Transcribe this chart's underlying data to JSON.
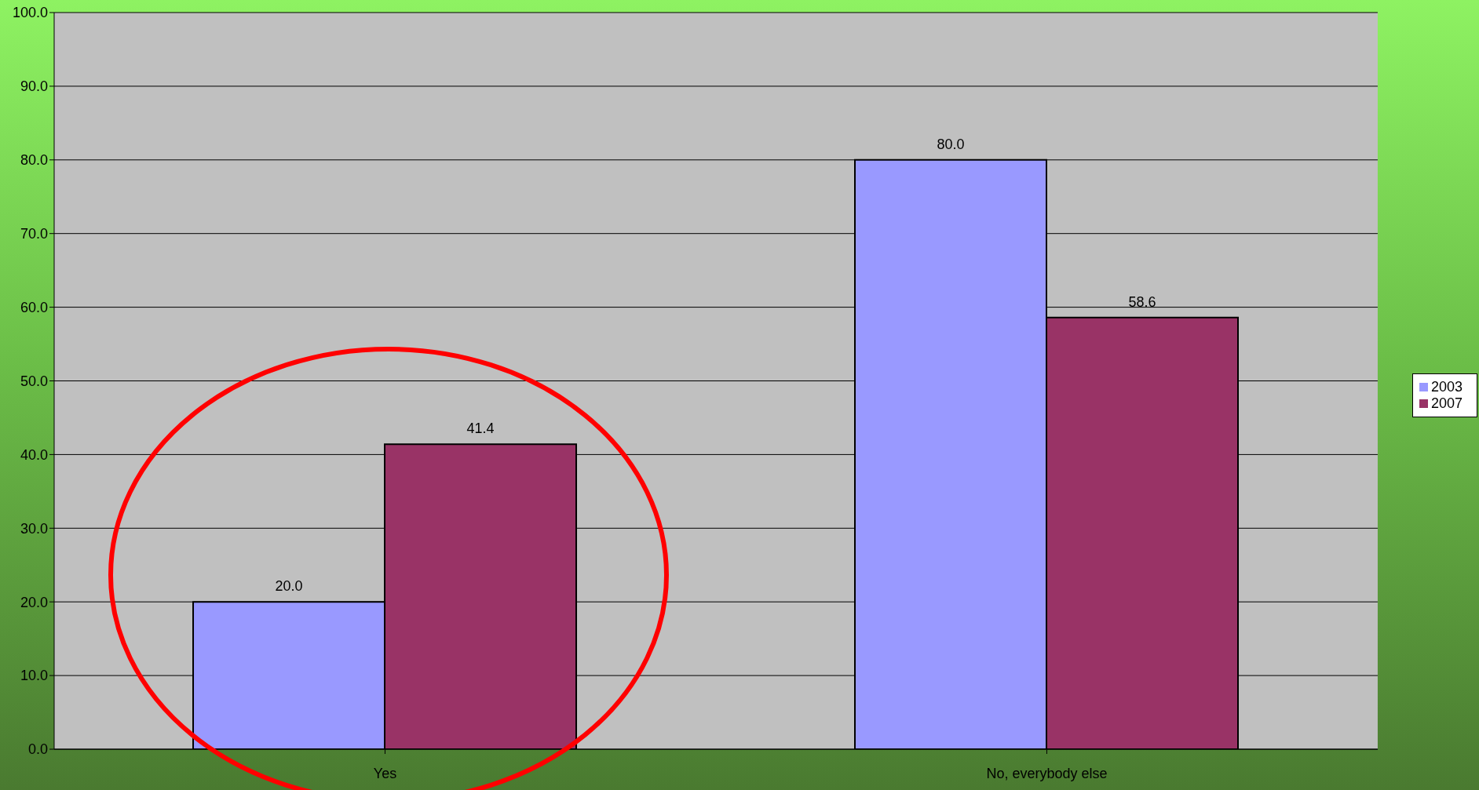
{
  "chart_data": {
    "type": "bar",
    "categories": [
      "Yes",
      "No, everybody else"
    ],
    "series": [
      {
        "name": "2003",
        "color": "#9999ff",
        "values": [
          20.0,
          80.0
        ],
        "value_labels": [
          "20.0",
          "80.0"
        ]
      },
      {
        "name": "2007",
        "color": "#993366",
        "values": [
          41.4,
          58.6
        ],
        "value_labels": [
          "41.4",
          "58.6"
        ]
      }
    ],
    "ylim": [
      0,
      100
    ],
    "yticks": [
      {
        "value": 0,
        "label": "0.0"
      },
      {
        "value": 10,
        "label": "10.0"
      },
      {
        "value": 20,
        "label": "20.0"
      },
      {
        "value": 30,
        "label": "30.0"
      },
      {
        "value": 40,
        "label": "40.0"
      },
      {
        "value": 50,
        "label": "50.0"
      },
      {
        "value": 60,
        "label": "60.0"
      },
      {
        "value": 70,
        "label": "70.0"
      },
      {
        "value": 80,
        "label": "80.0"
      },
      {
        "value": 90,
        "label": "90.0"
      },
      {
        "value": 100,
        "label": "100.0"
      }
    ],
    "grid": "y",
    "legend": "right"
  }
}
